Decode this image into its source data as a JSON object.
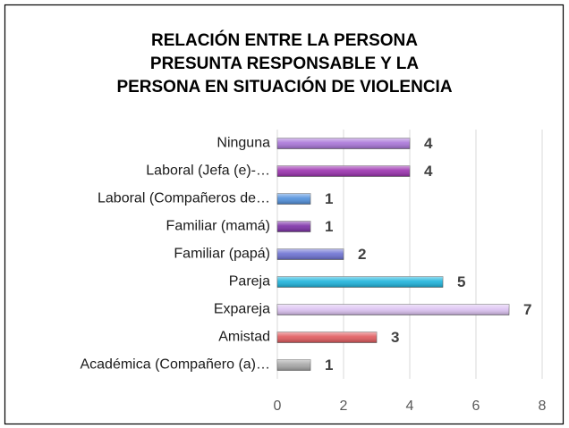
{
  "chart_data": {
    "type": "bar",
    "orientation": "horizontal",
    "title": [
      "RELACIÓN ENTRE LA PERSONA",
      "PRESUNTA RESPONSABLE Y LA",
      "PERSONA EN SITUACIÓN DE VIOLENCIA"
    ],
    "categories": [
      "Ninguna",
      "Laboral (Jefa (e)-…",
      "Laboral (Compañeros de…",
      "Familiar (mamá)",
      "Familiar (papá)",
      "Pareja",
      "Expareja",
      "Amistad",
      "Académica (Compañero (a)…"
    ],
    "values": [
      4,
      4,
      1,
      1,
      2,
      5,
      7,
      3,
      1
    ],
    "colors": [
      "#a874d8",
      "#9a2fae",
      "#4f8fdc",
      "#7b2ea6",
      "#6b70d2",
      "#1bb3dc",
      "#dcc2f2",
      "#e0595c",
      "#a6a6a6"
    ],
    "xlim": [
      0,
      8
    ],
    "xticks": [
      0,
      2,
      4,
      6,
      8
    ],
    "grid": true
  }
}
